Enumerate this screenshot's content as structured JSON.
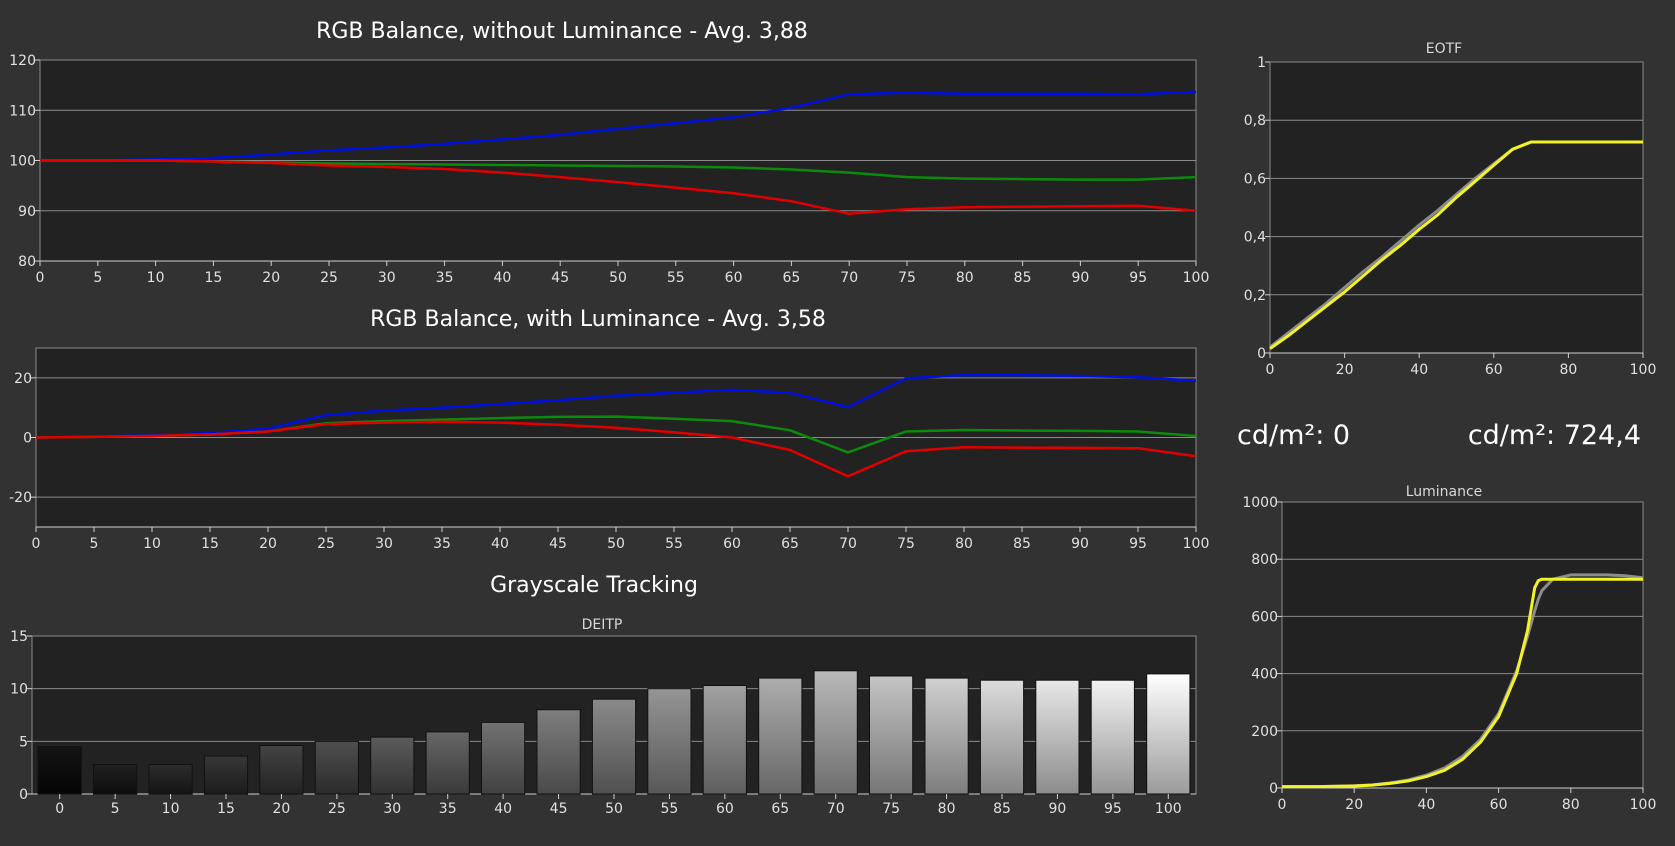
{
  "readouts": {
    "min_label": "cd/m²: 0",
    "max_label": "cd/m²: 724,4"
  },
  "colors": {
    "background": "#323232",
    "plot_bg": "#222222",
    "grid": "#8a8a8a",
    "red": "#e00000",
    "green": "#0c8a0c",
    "blue": "#0010e0",
    "yellow": "#f2f22a",
    "reference": "#8c8c8c"
  },
  "chart_data": [
    {
      "id": "rgb_no_lum",
      "type": "line",
      "title": "RGB Balance, without Luminance - Avg. 3,88",
      "x": [
        0,
        5,
        10,
        15,
        20,
        25,
        30,
        35,
        40,
        45,
        50,
        55,
        60,
        65,
        70,
        75,
        80,
        85,
        90,
        95,
        100
      ],
      "xlim": [
        0,
        100
      ],
      "ylim": [
        80,
        120
      ],
      "yticks": [
        80,
        90,
        100,
        110,
        120
      ],
      "series": [
        {
          "color": "blue",
          "values": [
            100,
            100,
            100.2,
            100.5,
            101.2,
            102,
            102.6,
            103.3,
            104.2,
            105.1,
            106.3,
            107.4,
            108.6,
            110.5,
            113.2,
            113.5,
            113.3,
            113.3,
            113.3,
            113.2,
            113.7
          ]
        },
        {
          "color": "green",
          "values": [
            100,
            100,
            100,
            99.8,
            99.6,
            99.4,
            99.3,
            99.2,
            99.1,
            99,
            98.9,
            98.8,
            98.6,
            98.2,
            97.6,
            96.7,
            96.4,
            96.3,
            96.2,
            96.2,
            96.7
          ]
        },
        {
          "color": "red",
          "values": [
            100,
            100,
            100,
            99.8,
            99.5,
            99,
            98.7,
            98.3,
            97.6,
            96.7,
            95.7,
            94.6,
            93.5,
            91.9,
            89.4,
            90.3,
            90.7,
            90.8,
            90.9,
            91,
            90
          ]
        }
      ]
    },
    {
      "id": "rgb_with_lum",
      "type": "line",
      "title": "RGB Balance, with Luminance - Avg. 3,58",
      "x": [
        0,
        5,
        10,
        15,
        20,
        25,
        30,
        35,
        40,
        45,
        50,
        55,
        60,
        65,
        70,
        75,
        80,
        85,
        90,
        95,
        100
      ],
      "xlim": [
        0,
        100
      ],
      "ylim": [
        -30,
        30
      ],
      "yticks": [
        -20,
        0,
        20
      ],
      "series": [
        {
          "color": "blue",
          "values": [
            0,
            0.3,
            0.7,
            1.5,
            3,
            7.5,
            9,
            10,
            11.2,
            12.5,
            14,
            15,
            16,
            15,
            10.2,
            19.8,
            20.9,
            20.9,
            20.6,
            20.2,
            19
          ]
        },
        {
          "color": "green",
          "values": [
            0,
            0.2,
            0.5,
            1,
            2,
            4.8,
            5.5,
            6,
            6.5,
            6.9,
            7,
            6.3,
            5.5,
            2.4,
            -5,
            2,
            2.5,
            2.3,
            2.2,
            2,
            0.5
          ]
        },
        {
          "color": "red",
          "values": [
            0,
            0.2,
            0.5,
            1,
            2,
            4.5,
            5,
            5.3,
            5,
            4.3,
            3.3,
            1.7,
            0,
            -4.2,
            -13,
            -4.6,
            -3.3,
            -3.4,
            -3.5,
            -3.6,
            -6.3
          ]
        }
      ]
    },
    {
      "id": "grayscale",
      "type": "bar",
      "title": "Grayscale Tracking",
      "subtitle": "DEITP",
      "categories": [
        "0",
        "5",
        "10",
        "15",
        "20",
        "25",
        "30",
        "35",
        "40",
        "45",
        "50",
        "55",
        "60",
        "65",
        "70",
        "75",
        "80",
        "85",
        "90",
        "95",
        "100"
      ],
      "values": [
        4.5,
        2.8,
        2.8,
        3.6,
        4.6,
        5,
        5.4,
        5.9,
        6.8,
        8,
        9,
        10,
        10.3,
        11,
        11.7,
        11.2,
        11,
        10.8,
        10.8,
        10.8,
        11.4
      ],
      "ylim": [
        0,
        15
      ],
      "yticks": [
        0,
        5,
        10,
        15
      ]
    },
    {
      "id": "eotf",
      "type": "line",
      "title": "EOTF",
      "x": [
        0,
        5,
        10,
        15,
        20,
        25,
        30,
        35,
        40,
        45,
        50,
        55,
        60,
        65,
        70,
        71.5,
        75,
        80,
        85,
        90,
        95,
        100
      ],
      "xlim": [
        0,
        100
      ],
      "ylim": [
        0,
        1
      ],
      "xticks": [
        0,
        20,
        40,
        60,
        80,
        100
      ],
      "yticks": [
        0,
        0.2,
        0.4,
        0.6,
        0.8,
        1
      ],
      "ytick_labels": [
        "0",
        "0,2",
        "0,4",
        "0,6",
        "0,8",
        "1"
      ],
      "series": [
        {
          "color": "reference",
          "values": [
            0.02,
            0.07,
            0.12,
            0.17,
            0.225,
            0.28,
            0.33,
            0.385,
            0.44,
            0.49,
            0.545,
            0.6,
            0.65,
            0.7,
            0.725,
            0.725,
            0.725,
            0.725,
            0.725,
            0.725,
            0.725,
            0.725
          ]
        },
        {
          "color": "yellow",
          "values": [
            0.015,
            0.06,
            0.11,
            0.16,
            0.21,
            0.265,
            0.32,
            0.37,
            0.425,
            0.475,
            0.535,
            0.59,
            0.645,
            0.7,
            0.725,
            0.725,
            0.725,
            0.725,
            0.725,
            0.725,
            0.725,
            0.725
          ]
        }
      ]
    },
    {
      "id": "luminance",
      "type": "line",
      "title": "Luminance",
      "x": [
        0,
        10,
        20,
        25,
        30,
        35,
        40,
        45,
        50,
        55,
        60,
        65,
        68,
        70,
        71,
        72,
        75,
        80,
        85,
        90,
        95,
        100
      ],
      "xlim": [
        0,
        100
      ],
      "ylim": [
        0,
        1000
      ],
      "xticks": [
        0,
        20,
        40,
        60,
        80,
        100
      ],
      "yticks": [
        0,
        200,
        400,
        600,
        800,
        1000
      ],
      "series": [
        {
          "color": "reference",
          "values": [
            5,
            5,
            8,
            11,
            18,
            28,
            45,
            70,
            110,
            170,
            260,
            410,
            530,
            620,
            660,
            690,
            730,
            745,
            745,
            745,
            742,
            735
          ]
        },
        {
          "color": "yellow",
          "values": [
            5,
            5,
            7,
            10,
            16,
            25,
            40,
            62,
            100,
            160,
            250,
            400,
            550,
            700,
            725,
            730,
            730,
            730,
            730,
            730,
            730,
            730
          ]
        }
      ]
    }
  ]
}
